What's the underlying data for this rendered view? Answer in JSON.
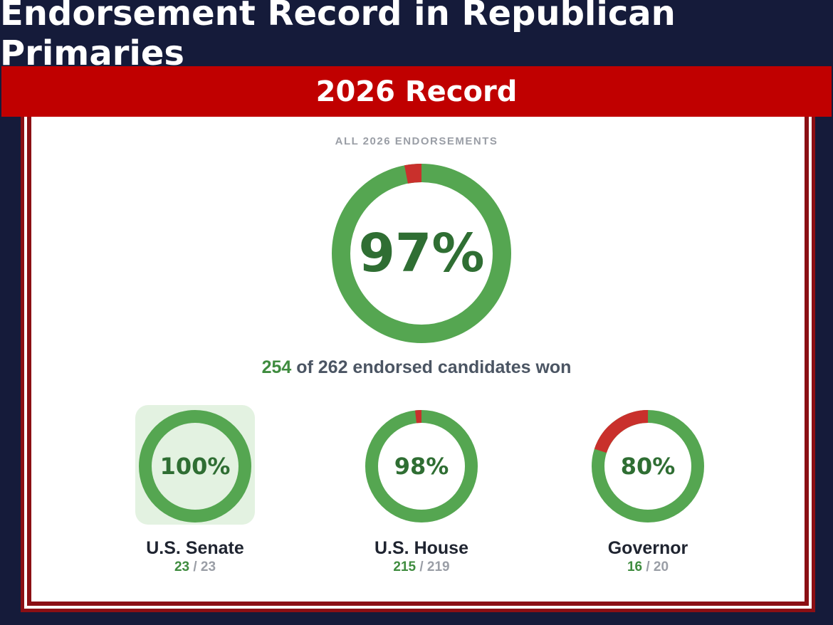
{
  "header": {
    "title": "Endorsement Record in Republican Primaries",
    "subtitle": "2026 Record"
  },
  "colors": {
    "won": "#55a651",
    "lost": "#c9302c",
    "percent_text": "#2f6e33",
    "highlight_bg": "#e3f2e1",
    "navy": "#151b3a",
    "banner_red": "#c00000"
  },
  "chart_data": {
    "type": "donut",
    "overall": {
      "label": "ALL 2026 ENDORSEMENTS",
      "percent_label": "97%",
      "won": 254,
      "total": 262,
      "summary_won": "254",
      "summary_rest": " of 262 endorsed candidates won"
    },
    "categories": [
      {
        "name": "U.S. Senate",
        "percent_label": "100%",
        "won": 23,
        "total": 23,
        "won_text": "23",
        "total_text": " / 23",
        "highlighted": true
      },
      {
        "name": "U.S. House",
        "percent_label": "98%",
        "won": 215,
        "total": 219,
        "won_text": "215",
        "total_text": " / 219",
        "highlighted": false
      },
      {
        "name": "Governor",
        "percent_label": "80%",
        "won": 16,
        "total": 20,
        "won_text": "16",
        "total_text": " / 20",
        "highlighted": false
      }
    ]
  }
}
